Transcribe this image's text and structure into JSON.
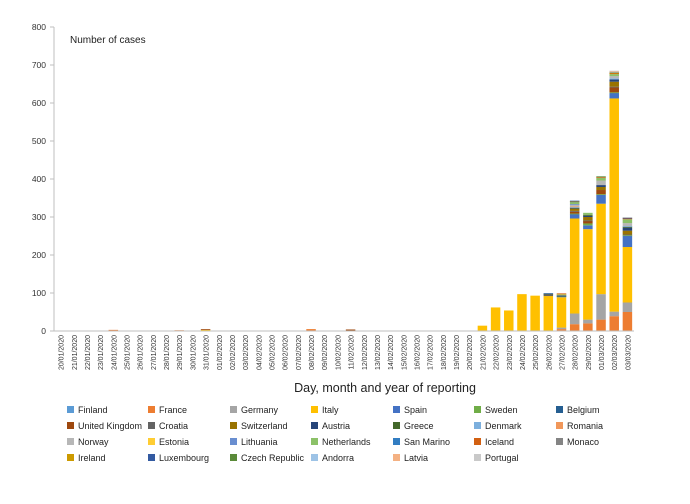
{
  "chart_data": {
    "type": "bar",
    "stacked": true,
    "annotation": "Number of cases",
    "xlabel": "Day, month and year of reporting",
    "ylabel": "",
    "ylim": [
      0,
      800
    ],
    "yticks": [
      0,
      100,
      200,
      300,
      400,
      500,
      600,
      700,
      800
    ],
    "grid": false,
    "legend_position": "bottom",
    "categories": [
      "20/01/2020",
      "21/01/2020",
      "22/01/2020",
      "23/01/2020",
      "24/01/2020",
      "25/01/2020",
      "26/01/2020",
      "27/01/2020",
      "28/01/2020",
      "29/01/2020",
      "30/01/2020",
      "31/01/2020",
      "01/02/2020",
      "02/02/2020",
      "03/02/2020",
      "04/02/2020",
      "05/02/2020",
      "06/02/2020",
      "07/02/2020",
      "08/02/2020",
      "09/02/2020",
      "10/02/2020",
      "11/02/2020",
      "12/02/2020",
      "13/02/2020",
      "14/02/2020",
      "15/02/2020",
      "16/02/2020",
      "17/02/2020",
      "18/02/2020",
      "19/02/2020",
      "20/02/2020",
      "21/02/2020",
      "22/02/2020",
      "23/02/2020",
      "24/02/2020",
      "25/02/2020",
      "26/02/2020",
      "27/02/2020",
      "28/02/2020",
      "29/02/2020",
      "01/03/2020",
      "02/03/2020",
      "03/03/2020"
    ],
    "series": [
      {
        "name": "Finland",
        "color": "#5b9bd5",
        "values": [
          0,
          0,
          0,
          0,
          0,
          0,
          0,
          0,
          0,
          1,
          0,
          0,
          0,
          0,
          0,
          0,
          0,
          0,
          0,
          0,
          0,
          0,
          0,
          0,
          0,
          0,
          0,
          0,
          0,
          0,
          0,
          0,
          0,
          0,
          0,
          0,
          0,
          0,
          0,
          0,
          0,
          0,
          0,
          0
        ]
      },
      {
        "name": "France",
        "color": "#ed7d31",
        "values": [
          0,
          0,
          0,
          0,
          3,
          0,
          0,
          0,
          1,
          1,
          0,
          0,
          0,
          0,
          0,
          0,
          0,
          0,
          0,
          5,
          0,
          0,
          0,
          0,
          0,
          0,
          0,
          0,
          0,
          0,
          0,
          0,
          0,
          0,
          0,
          0,
          0,
          0,
          5,
          18,
          20,
          30,
          39,
          50
        ]
      },
      {
        "name": "Germany",
        "color": "#a5a5a5",
        "values": [
          0,
          0,
          0,
          0,
          0,
          0,
          0,
          0,
          0,
          0,
          0,
          0,
          0,
          0,
          0,
          0,
          0,
          0,
          0,
          0,
          0,
          0,
          0,
          0,
          0,
          0,
          0,
          0,
          0,
          0,
          0,
          0,
          0,
          0,
          0,
          0,
          0,
          0,
          4,
          28,
          10,
          67,
          12,
          25
        ]
      },
      {
        "name": "Italy",
        "color": "#ffc000",
        "values": [
          0,
          0,
          0,
          0,
          0,
          0,
          0,
          0,
          0,
          0,
          0,
          3,
          0,
          0,
          0,
          0,
          0,
          0,
          0,
          0,
          0,
          0,
          0,
          0,
          0,
          0,
          0,
          0,
          0,
          0,
          0,
          0,
          14,
          62,
          54,
          97,
          93,
          92,
          80,
          250,
          238,
          238,
          561,
          146
        ]
      },
      {
        "name": "Spain",
        "color": "#4472c4",
        "values": [
          0,
          0,
          0,
          0,
          0,
          0,
          0,
          0,
          0,
          0,
          0,
          0,
          0,
          0,
          0,
          0,
          0,
          0,
          0,
          0,
          0,
          0,
          0,
          0,
          0,
          0,
          0,
          0,
          0,
          0,
          0,
          0,
          0,
          0,
          0,
          0,
          0,
          0,
          2,
          12,
          10,
          24,
          15,
          30
        ]
      },
      {
        "name": "Sweden",
        "color": "#70ad47",
        "values": [
          0,
          0,
          0,
          0,
          0,
          0,
          0,
          0,
          0,
          0,
          0,
          0,
          0,
          0,
          0,
          0,
          0,
          0,
          0,
          0,
          0,
          0,
          0,
          0,
          0,
          0,
          0,
          0,
          0,
          0,
          0,
          0,
          0,
          0,
          0,
          0,
          0,
          0,
          1,
          1,
          5,
          1,
          1,
          1
        ]
      },
      {
        "name": "Belgium",
        "color": "#255e91",
        "values": [
          0,
          0,
          0,
          0,
          0,
          0,
          0,
          0,
          0,
          0,
          0,
          0,
          0,
          0,
          0,
          1,
          0,
          0,
          0,
          0,
          0,
          0,
          0,
          0,
          0,
          0,
          0,
          0,
          0,
          0,
          0,
          0,
          0,
          0,
          0,
          0,
          0,
          0,
          0,
          0,
          0,
          0,
          0,
          0
        ]
      },
      {
        "name": "United Kingdom",
        "color": "#9e480e",
        "values": [
          0,
          0,
          0,
          0,
          0,
          0,
          0,
          0,
          0,
          0,
          0,
          2,
          0,
          0,
          0,
          0,
          0,
          0,
          0,
          0,
          0,
          1,
          4,
          0,
          0,
          0,
          0,
          0,
          0,
          0,
          0,
          0,
          0,
          0,
          0,
          0,
          0,
          0,
          0,
          5,
          7,
          11,
          13,
          0
        ]
      },
      {
        "name": "Croatia",
        "color": "#636363",
        "values": [
          0,
          0,
          0,
          0,
          0,
          0,
          0,
          0,
          0,
          0,
          0,
          0,
          0,
          0,
          0,
          0,
          0,
          0,
          0,
          0,
          0,
          0,
          0,
          0,
          0,
          0,
          0,
          0,
          0,
          0,
          0,
          0,
          0,
          0,
          0,
          0,
          0,
          3,
          0,
          2,
          1,
          0,
          2,
          2
        ]
      },
      {
        "name": "Switzerland",
        "color": "#997300",
        "values": [
          0,
          0,
          0,
          0,
          0,
          0,
          0,
          0,
          0,
          0,
          0,
          0,
          0,
          0,
          0,
          0,
          0,
          0,
          0,
          0,
          0,
          0,
          0,
          0,
          0,
          0,
          0,
          0,
          0,
          0,
          0,
          0,
          0,
          0,
          0,
          0,
          0,
          0,
          0,
          6,
          9,
          8,
          13,
          10
        ]
      },
      {
        "name": "Austria",
        "color": "#264478",
        "values": [
          0,
          0,
          0,
          0,
          0,
          0,
          0,
          0,
          0,
          0,
          0,
          0,
          0,
          0,
          0,
          0,
          0,
          0,
          0,
          0,
          0,
          0,
          0,
          0,
          0,
          0,
          0,
          0,
          0,
          0,
          0,
          0,
          0,
          0,
          0,
          0,
          0,
          2,
          1,
          2,
          3,
          5,
          6,
          8
        ]
      },
      {
        "name": "Greece",
        "color": "#43682b",
        "values": [
          0,
          0,
          0,
          0,
          0,
          0,
          0,
          0,
          0,
          0,
          0,
          0,
          0,
          0,
          0,
          0,
          0,
          0,
          0,
          0,
          0,
          0,
          0,
          0,
          0,
          0,
          0,
          0,
          0,
          0,
          0,
          0,
          0,
          0,
          0,
          0,
          0,
          1,
          2,
          1,
          3,
          0,
          0,
          3
        ]
      },
      {
        "name": "Denmark",
        "color": "#7cafdd",
        "values": [
          0,
          0,
          0,
          0,
          0,
          0,
          0,
          0,
          0,
          0,
          0,
          0,
          0,
          0,
          0,
          0,
          0,
          0,
          0,
          0,
          0,
          0,
          0,
          0,
          0,
          0,
          0,
          0,
          0,
          0,
          0,
          0,
          0,
          0,
          0,
          0,
          0,
          0,
          0,
          1,
          0,
          0,
          3,
          1
        ]
      },
      {
        "name": "Romania",
        "color": "#f1975a",
        "values": [
          0,
          0,
          0,
          0,
          0,
          0,
          0,
          0,
          0,
          0,
          0,
          0,
          0,
          0,
          0,
          0,
          0,
          0,
          0,
          0,
          0,
          0,
          0,
          0,
          0,
          0,
          0,
          0,
          0,
          0,
          0,
          0,
          0,
          0,
          0,
          0,
          0,
          1,
          0,
          2,
          0,
          0,
          0,
          0
        ]
      },
      {
        "name": "Norway",
        "color": "#b7b7b7",
        "values": [
          0,
          0,
          0,
          0,
          0,
          0,
          0,
          0,
          0,
          0,
          0,
          0,
          0,
          0,
          0,
          0,
          0,
          0,
          0,
          0,
          0,
          0,
          0,
          0,
          0,
          0,
          0,
          0,
          0,
          0,
          0,
          0,
          0,
          0,
          0,
          0,
          0,
          0,
          1,
          5,
          0,
          12,
          6,
          8
        ]
      },
      {
        "name": "Estonia",
        "color": "#ffcd33",
        "values": [
          0,
          0,
          0,
          0,
          0,
          0,
          0,
          0,
          0,
          0,
          0,
          0,
          0,
          0,
          0,
          0,
          0,
          0,
          0,
          0,
          0,
          0,
          0,
          0,
          0,
          0,
          0,
          0,
          0,
          0,
          0,
          0,
          0,
          0,
          0,
          0,
          0,
          0,
          1,
          0,
          0,
          0,
          0,
          0
        ]
      },
      {
        "name": "Lithuania",
        "color": "#698ed0",
        "values": [
          0,
          0,
          0,
          0,
          0,
          0,
          0,
          0,
          0,
          0,
          0,
          0,
          0,
          0,
          0,
          0,
          0,
          0,
          0,
          0,
          0,
          0,
          0,
          0,
          0,
          0,
          0,
          0,
          0,
          0,
          0,
          0,
          0,
          0,
          0,
          0,
          0,
          0,
          0,
          1,
          0,
          0,
          0,
          0
        ]
      },
      {
        "name": "Netherlands",
        "color": "#8cc168",
        "values": [
          0,
          0,
          0,
          0,
          0,
          0,
          0,
          0,
          0,
          0,
          0,
          0,
          0,
          0,
          0,
          0,
          0,
          0,
          0,
          0,
          0,
          0,
          0,
          0,
          0,
          0,
          0,
          0,
          0,
          0,
          0,
          0,
          0,
          0,
          0,
          0,
          0,
          0,
          1,
          6,
          5,
          7,
          5,
          10
        ]
      },
      {
        "name": "San Marino",
        "color": "#327dc2",
        "values": [
          0,
          0,
          0,
          0,
          0,
          0,
          0,
          0,
          0,
          0,
          0,
          0,
          0,
          0,
          0,
          0,
          0,
          0,
          0,
          0,
          0,
          0,
          0,
          0,
          0,
          0,
          0,
          0,
          0,
          0,
          0,
          0,
          0,
          0,
          0,
          0,
          0,
          1,
          0,
          0,
          0,
          0,
          0,
          0
        ]
      },
      {
        "name": "Iceland",
        "color": "#d26012",
        "values": [
          0,
          0,
          0,
          0,
          0,
          0,
          0,
          0,
          0,
          0,
          0,
          0,
          0,
          0,
          0,
          0,
          0,
          0,
          0,
          0,
          0,
          0,
          0,
          0,
          0,
          0,
          0,
          0,
          0,
          0,
          0,
          0,
          0,
          0,
          0,
          0,
          0,
          0,
          1,
          0,
          0,
          2,
          3,
          3
        ]
      },
      {
        "name": "Monaco",
        "color": "#848484",
        "values": [
          0,
          0,
          0,
          0,
          0,
          0,
          0,
          0,
          0,
          0,
          0,
          0,
          0,
          0,
          0,
          0,
          0,
          0,
          0,
          0,
          0,
          0,
          0,
          0,
          0,
          0,
          0,
          0,
          0,
          0,
          0,
          0,
          0,
          0,
          0,
          0,
          0,
          0,
          0,
          1,
          0,
          0,
          0,
          0
        ]
      },
      {
        "name": "Ireland",
        "color": "#cc9a00",
        "values": [
          0,
          0,
          0,
          0,
          0,
          0,
          0,
          0,
          0,
          0,
          0,
          0,
          0,
          0,
          0,
          0,
          0,
          0,
          0,
          0,
          0,
          0,
          0,
          0,
          0,
          0,
          0,
          0,
          0,
          0,
          0,
          0,
          0,
          0,
          0,
          0,
          0,
          0,
          0,
          1,
          0,
          0,
          1,
          0
        ]
      },
      {
        "name": "Luxembourg",
        "color": "#335aa1",
        "values": [
          0,
          0,
          0,
          0,
          0,
          0,
          0,
          0,
          0,
          0,
          0,
          0,
          0,
          0,
          0,
          0,
          0,
          0,
          0,
          0,
          0,
          0,
          0,
          0,
          0,
          0,
          0,
          0,
          0,
          0,
          0,
          0,
          0,
          0,
          0,
          0,
          0,
          0,
          0,
          1,
          0,
          0,
          0,
          1
        ]
      },
      {
        "name": "Czech Republic",
        "color": "#5a8a39",
        "values": [
          0,
          0,
          0,
          0,
          0,
          0,
          0,
          0,
          0,
          0,
          0,
          0,
          0,
          0,
          0,
          0,
          0,
          0,
          0,
          0,
          0,
          0,
          0,
          0,
          0,
          0,
          0,
          0,
          0,
          0,
          0,
          0,
          0,
          0,
          0,
          0,
          0,
          0,
          0,
          0,
          0,
          2,
          1,
          0
        ]
      },
      {
        "name": "Andorra",
        "color": "#9dc3e6",
        "values": [
          0,
          0,
          0,
          0,
          0,
          0,
          0,
          0,
          0,
          0,
          0,
          0,
          0,
          0,
          0,
          0,
          0,
          0,
          0,
          0,
          0,
          0,
          0,
          0,
          0,
          0,
          0,
          0,
          0,
          0,
          0,
          0,
          0,
          0,
          0,
          0,
          0,
          0,
          0,
          0,
          0,
          0,
          1,
          0
        ]
      },
      {
        "name": "Latvia",
        "color": "#f4b183",
        "values": [
          0,
          0,
          0,
          0,
          0,
          0,
          0,
          0,
          0,
          0,
          0,
          0,
          0,
          0,
          0,
          0,
          0,
          0,
          0,
          0,
          0,
          0,
          0,
          0,
          0,
          0,
          0,
          0,
          0,
          0,
          0,
          0,
          0,
          0,
          0,
          0,
          0,
          0,
          0,
          0,
          0,
          0,
          1,
          0
        ]
      },
      {
        "name": "Portugal",
        "color": "#c9c9c9",
        "values": [
          0,
          0,
          0,
          0,
          0,
          0,
          0,
          0,
          0,
          0,
          0,
          0,
          0,
          0,
          0,
          0,
          0,
          0,
          0,
          0,
          0,
          0,
          0,
          0,
          0,
          0,
          0,
          0,
          0,
          0,
          0,
          0,
          0,
          0,
          0,
          0,
          0,
          0,
          0,
          0,
          0,
          0,
          2,
          2
        ]
      }
    ]
  }
}
